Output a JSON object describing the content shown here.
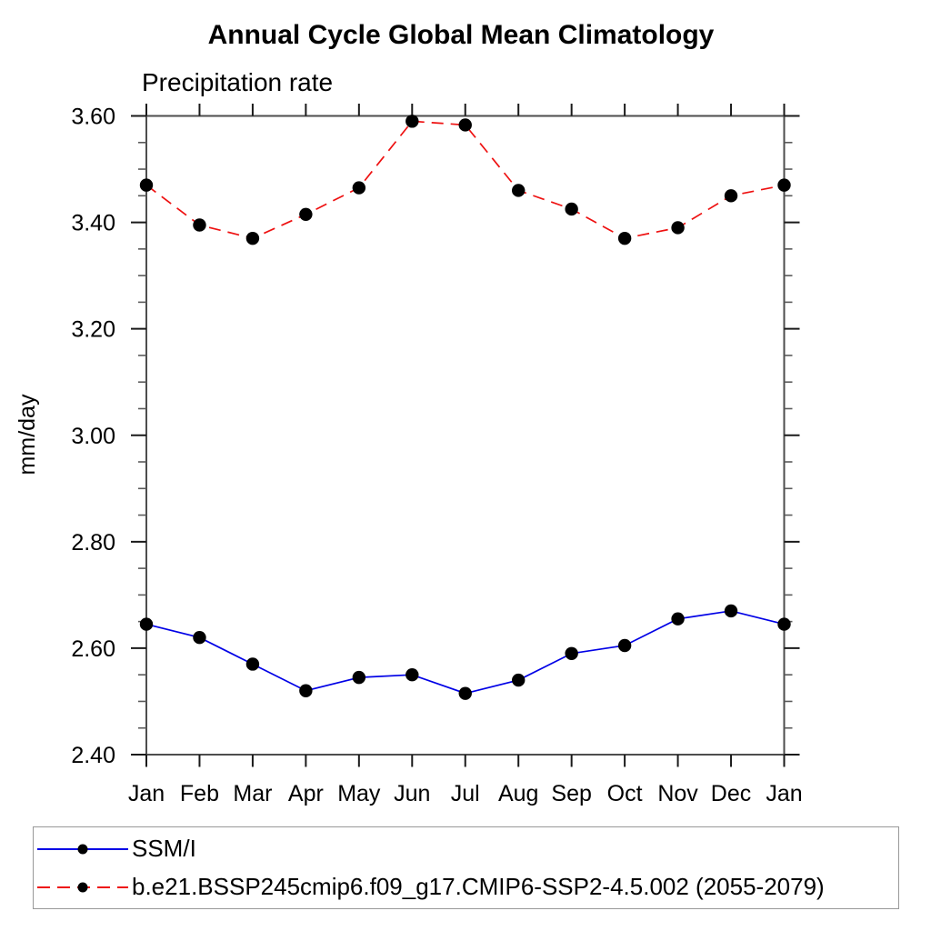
{
  "chart_data": {
    "type": "line",
    "title": "Annual Cycle Global Mean Climatology",
    "subtitle": "Precipitation rate",
    "ylabel": "mm/day",
    "xlabel": "",
    "categories": [
      "Jan",
      "Feb",
      "Mar",
      "Apr",
      "May",
      "Jun",
      "Jul",
      "Aug",
      "Sep",
      "Oct",
      "Nov",
      "Dec",
      "Jan"
    ],
    "ylim": [
      2.4,
      3.6
    ],
    "ytick_major_step": 0.2,
    "ytick_minor_step": 0.05,
    "ytick_label_format_decimals": 2,
    "grid": false,
    "ticks": "outward-all-sides",
    "legend_position": "bottom-box",
    "series": [
      {
        "name": "SSM/I",
        "color": "#0000e6",
        "style": "solid",
        "marker": "filled-circle",
        "marker_color": "#000000",
        "values": [
          2.645,
          2.62,
          2.57,
          2.52,
          2.545,
          2.55,
          2.515,
          2.54,
          2.59,
          2.605,
          2.655,
          2.67,
          2.645
        ]
      },
      {
        "name": "b.e21.BSSP245cmip6.f09_g17.CMIP6-SSP2-4.5.002 (2055-2079)",
        "color": "#ee1111",
        "style": "dashed",
        "marker": "filled-circle",
        "marker_color": "#000000",
        "values": [
          3.47,
          3.395,
          3.37,
          3.415,
          3.465,
          3.59,
          3.583,
          3.46,
          3.425,
          3.37,
          3.39,
          3.45,
          3.47
        ]
      }
    ],
    "colors": {
      "axis": "#4d4d4d",
      "major_tick": "#1a1a1a",
      "minor_tick": "#5a5a5a",
      "text": "#000000",
      "legend_border": "#999999"
    }
  }
}
